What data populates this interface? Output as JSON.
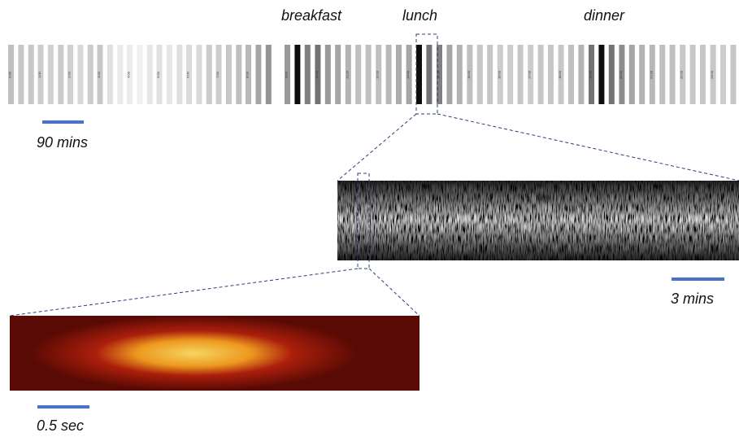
{
  "labels": {
    "breakfast": "breakfast",
    "lunch": "lunch",
    "dinner": "dinner"
  },
  "scale_bars": [
    {
      "label": "90 mins"
    },
    {
      "label": "3 mins"
    },
    {
      "label": "0.5 sec"
    }
  ],
  "hour_blocks": [
    {
      "label": "0:00",
      "shades": [
        0.25,
        0.22,
        0.22
      ]
    },
    {
      "label": "1:00",
      "shades": [
        0.2,
        0.18,
        0.2
      ]
    },
    {
      "label": "2:00",
      "shades": [
        0.18,
        0.15,
        0.2
      ]
    },
    {
      "label": "3:00",
      "shades": [
        0.22,
        0.12,
        0.08
      ]
    },
    {
      "label": "4:00",
      "shades": [
        0.08,
        0.06,
        0.1
      ]
    },
    {
      "label": "5:00",
      "shades": [
        0.12,
        0.1,
        0.12
      ]
    },
    {
      "label": "6:00",
      "shades": [
        0.14,
        0.15,
        0.2
      ]
    },
    {
      "label": "7:00",
      "shades": [
        0.2,
        0.22,
        0.25
      ]
    },
    {
      "label": "8:00",
      "shades": [
        0.28,
        0.35,
        0.42
      ]
    },
    {
      "label": "9:00",
      "shades": [
        0.4,
        0.95,
        0.5
      ]
    },
    {
      "label": "10:00",
      "shades": [
        0.55,
        0.4,
        0.35
      ]
    },
    {
      "label": "11:00",
      "shades": [
        0.3,
        0.25,
        0.25
      ]
    },
    {
      "label": "12:00",
      "shades": [
        0.25,
        0.28,
        0.32
      ]
    },
    {
      "label": "13:00",
      "shades": [
        0.35,
        0.95,
        0.55
      ]
    },
    {
      "label": "14:00",
      "shades": [
        0.5,
        0.35,
        0.3
      ]
    },
    {
      "label": "15:00",
      "shades": [
        0.25,
        0.22,
        0.22
      ]
    },
    {
      "label": "16:00",
      "shades": [
        0.2,
        0.2,
        0.22
      ]
    },
    {
      "label": "17:00",
      "shades": [
        0.2,
        0.22,
        0.22
      ]
    },
    {
      "label": "18:00",
      "shades": [
        0.22,
        0.25,
        0.3
      ]
    },
    {
      "label": "19:00",
      "shades": [
        0.55,
        0.95,
        0.55
      ]
    },
    {
      "label": "20:00",
      "shades": [
        0.45,
        0.35,
        0.3
      ]
    },
    {
      "label": "21:00",
      "shades": [
        0.28,
        0.25,
        0.25
      ]
    },
    {
      "label": "22:00",
      "shades": [
        0.22,
        0.22,
        0.22
      ]
    },
    {
      "label": "23:00",
      "shades": [
        0.22,
        0.2,
        0.22
      ]
    }
  ]
}
